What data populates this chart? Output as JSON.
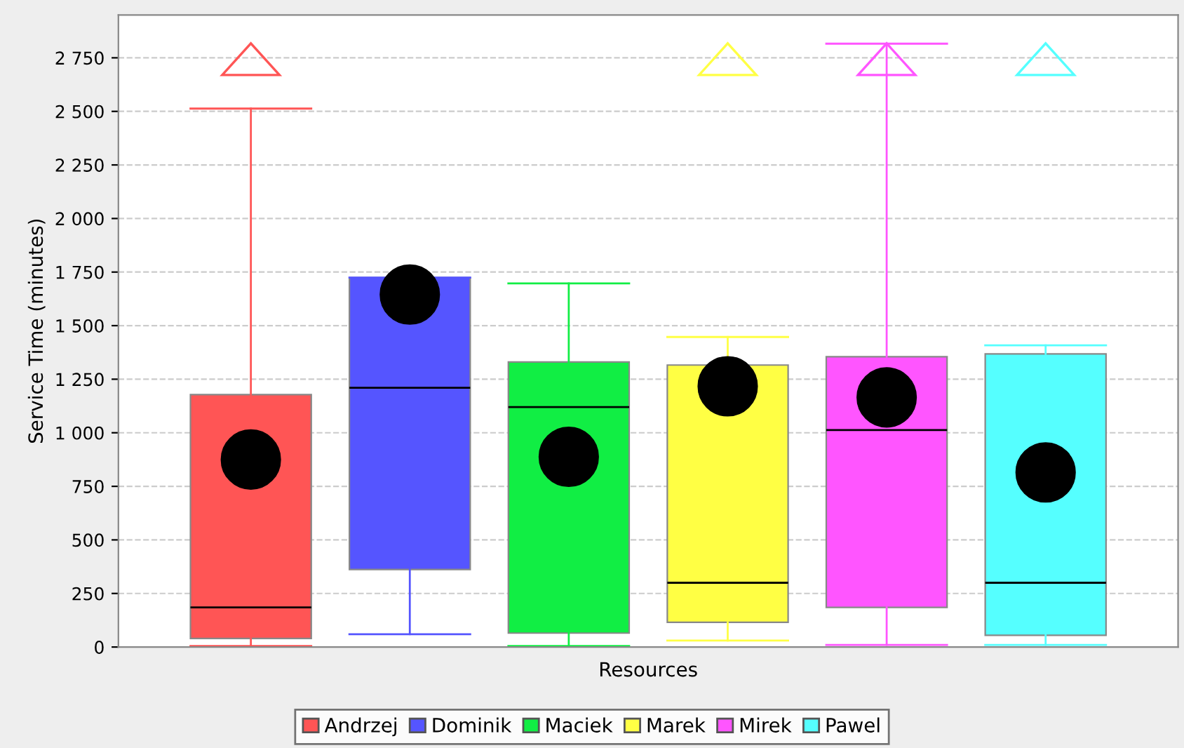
{
  "chart_data": {
    "type": "box",
    "xlabel": "Resources",
    "ylabel": "Service Time (minutes)",
    "categories": [
      null
    ],
    "series": [
      {
        "name": "Andrzej",
        "color": "#ff5555",
        "boxes": [
          {
            "low": 5,
            "q1": 40,
            "median": 185,
            "q3": 1178,
            "high": 2513,
            "mean": 875
          }
        ]
      },
      {
        "name": "Dominik",
        "color": "#5555ff",
        "boxes": [
          {
            "low": 60,
            "q1": 362,
            "median": 1210,
            "q3": 1724,
            "high": 1724,
            "mean": 1645
          }
        ]
      },
      {
        "name": "Maciek",
        "color": "#11ee44",
        "boxes": [
          {
            "low": 5,
            "q1": 65,
            "median": 1120,
            "q3": 1330,
            "high": 1697,
            "mean": 888
          }
        ]
      },
      {
        "name": "Marek",
        "color": "#ffff44",
        "boxes": [
          {
            "low": 30,
            "q1": 115,
            "median": 300,
            "q3": 1316,
            "high": 1447,
            "mean": 1217
          }
        ]
      },
      {
        "name": "Mirek",
        "color": "#ff55ff",
        "boxes": [
          {
            "low": 10,
            "q1": 185,
            "median": 1013,
            "q3": 1355,
            "high": 2816,
            "mean": 1165
          }
        ]
      },
      {
        "name": "Pawel",
        "color": "#55ffff",
        "boxes": [
          {
            "low": 10,
            "q1": 55,
            "median": 300,
            "q3": 1368,
            "high": 1408,
            "mean": 815
          }
        ]
      }
    ],
    "ylim": [
      0,
      2950
    ],
    "yticks": [
      0,
      250,
      500,
      750,
      {
        "value": 1000,
        "label": "1 000"
      },
      {
        "value": 1250,
        "label": "1 250"
      },
      {
        "value": 1500,
        "label": "1 500"
      },
      {
        "value": 1750,
        "label": "1 750"
      },
      {
        "value": 2000,
        "label": "2 000"
      },
      {
        "value": 2250,
        "label": "2 250"
      },
      {
        "value": 2500,
        "label": "2 500"
      },
      {
        "value": 2750,
        "label": "2 750"
      }
    ],
    "grid": "y",
    "legend": "bottom"
  }
}
